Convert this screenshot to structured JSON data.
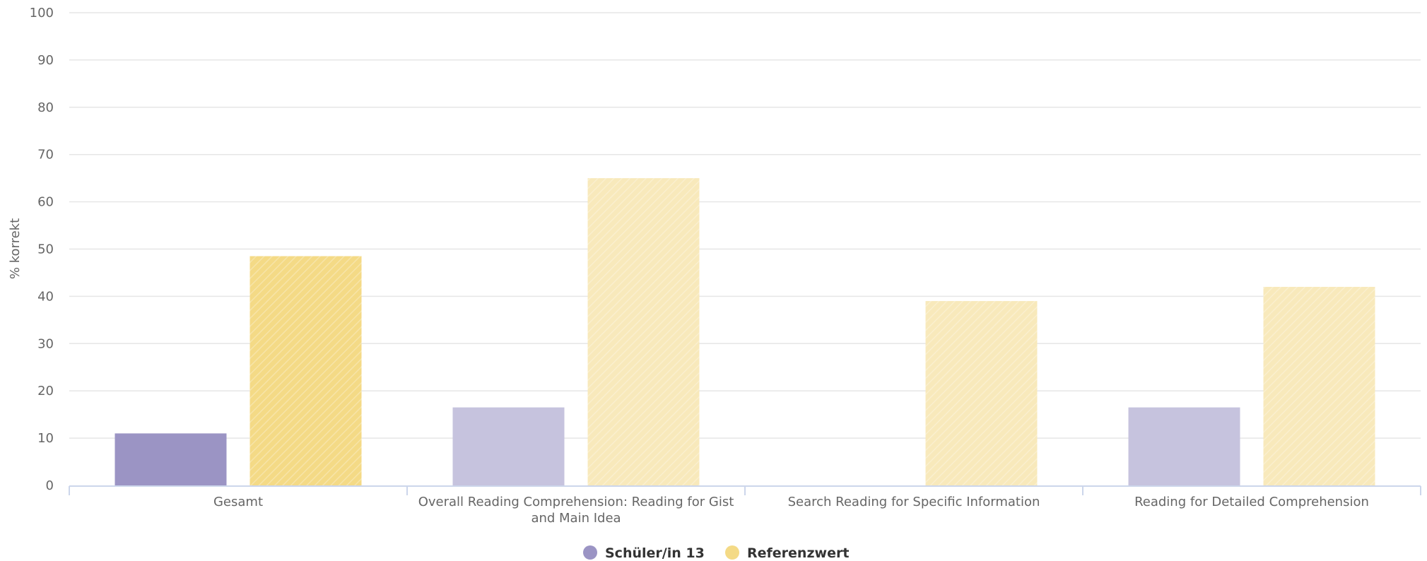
{
  "chart_data": {
    "type": "bar",
    "title": "",
    "xlabel": "",
    "ylabel": "% korrekt",
    "ylim": [
      0,
      100
    ],
    "yticks": [
      0,
      10,
      20,
      30,
      40,
      50,
      60,
      70,
      80,
      90,
      100
    ],
    "grid": true,
    "legend_position": "bottom-center",
    "categories": [
      [
        "Gesamt"
      ],
      [
        "Overall Reading Comprehension: Reading for Gist",
        "and Main Idea"
      ],
      [
        "Search Reading for Specific Information"
      ],
      [
        "Reading for Detailed Comprehension"
      ]
    ],
    "series": [
      {
        "name": "Schüler/in 13",
        "values": [
          11,
          16.5,
          0,
          16.5
        ],
        "colors": [
          "#9b94c4",
          "#c6c3de",
          "#c6c3de",
          "#c6c3de"
        ],
        "legend_color": "#9b94c4"
      },
      {
        "name": "Referenzwert",
        "values": [
          48.5,
          65,
          39,
          42
        ],
        "colors": [
          "#f4da86",
          "#f8e9bb",
          "#f8e9bb",
          "#f8e9bb"
        ],
        "legend_color": "#f4da86",
        "hatched": true
      }
    ]
  }
}
